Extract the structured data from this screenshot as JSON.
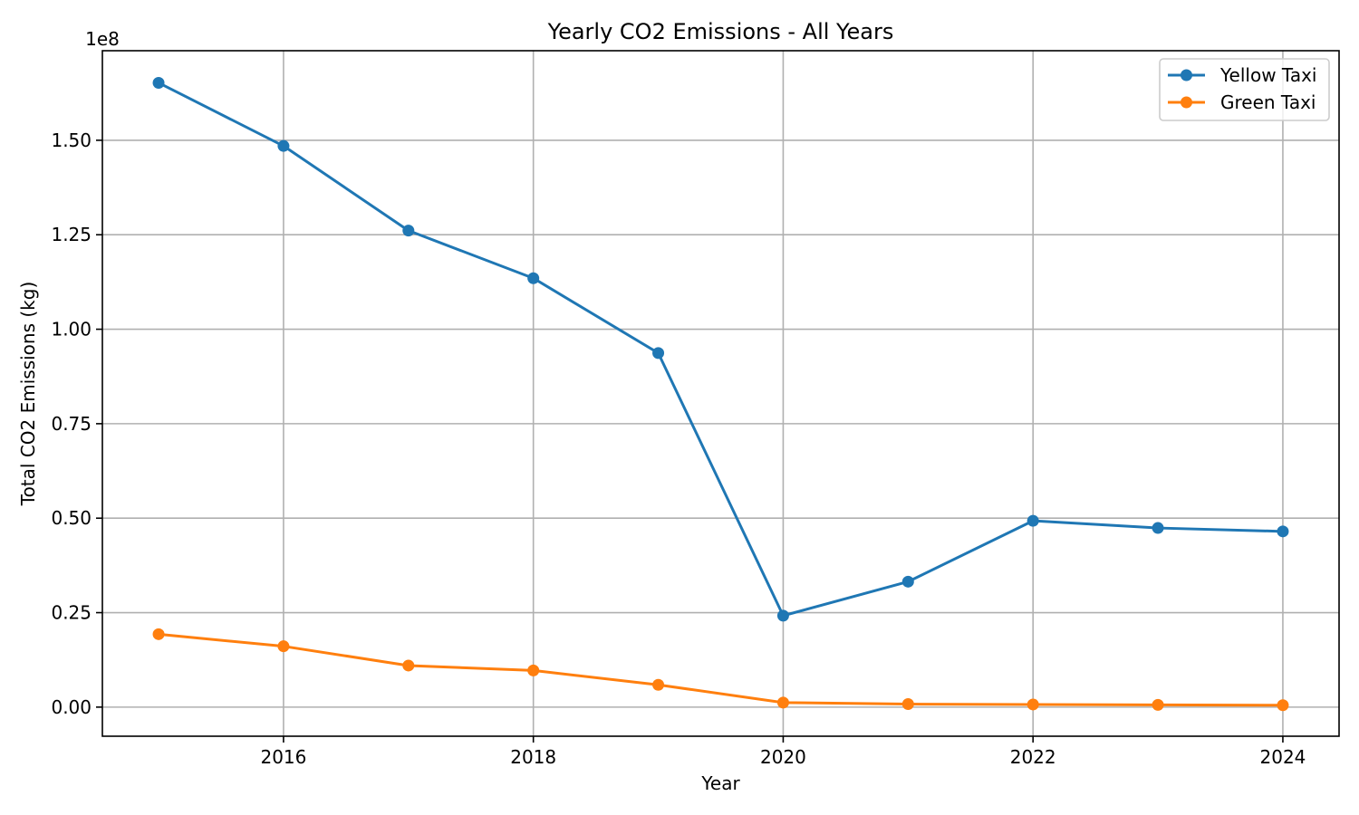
{
  "chart_data": {
    "type": "line",
    "title": "Yearly CO2 Emissions - All Years",
    "xlabel": "Year",
    "ylabel": "Total CO2 Emissions (kg)",
    "y_offset_label": "1e8",
    "x": [
      2015,
      2016,
      2017,
      2018,
      2019,
      2020,
      2021,
      2022,
      2023,
      2024
    ],
    "xlim": [
      2014.55,
      2024.45
    ],
    "ylim": [
      -7700000,
      173700000
    ],
    "x_ticks": [
      2016,
      2018,
      2020,
      2022,
      2024
    ],
    "x_tick_labels": [
      "2016",
      "2018",
      "2020",
      "2022",
      "2024"
    ],
    "y_ticks": [
      0,
      25000000,
      50000000,
      75000000,
      100000000,
      125000000,
      150000000
    ],
    "y_tick_labels": [
      "0.00",
      "0.25",
      "0.50",
      "0.75",
      "1.00",
      "1.25",
      "1.50"
    ],
    "grid": true,
    "legend_position": "top-right",
    "series": [
      {
        "name": "Yellow Taxi",
        "color": "#1f77b4",
        "marker": "circle",
        "values": [
          165200000,
          148500000,
          126100000,
          113500000,
          93700000,
          24200000,
          33200000,
          49300000,
          47400000,
          46500000
        ]
      },
      {
        "name": "Green Taxi",
        "color": "#ff7f0e",
        "marker": "circle",
        "values": [
          19300000,
          16100000,
          11000000,
          9700000,
          5900000,
          1200000,
          800000,
          700000,
          600000,
          500000
        ]
      }
    ]
  }
}
